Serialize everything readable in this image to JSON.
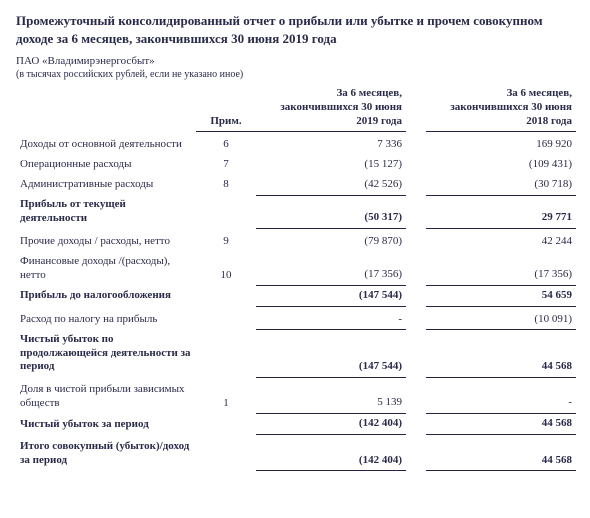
{
  "title": "Промежуточный консолидированный отчет о прибыли или убытке и прочем совокупном доходе за 6 месяцев, закончившихся 30 июня 2019 года",
  "company": "ПАО «Владимирэнергосбыт»",
  "units": "(в тысячах российских рублей, если не указано иное)",
  "headers": {
    "note": "Прим.",
    "current": "За 6 месяцев, закончившихся 30 июня 2019 года",
    "previous": "За 6 месяцев, закончившихся 30 июня 2018 года"
  },
  "rows": {
    "revenue": {
      "label": "Доходы от основной деятельности",
      "note": "6",
      "cur": "7 336",
      "prev": "169 920"
    },
    "opex": {
      "label": "Операционные расходы",
      "note": "7",
      "cur": "(15 127)",
      "prev": "(109 431)"
    },
    "admin": {
      "label": "Административные расходы",
      "note": "8",
      "cur": "(42 526)",
      "prev": "(30 718)"
    },
    "op_profit": {
      "label": "Прибыль от текущей деятельности",
      "note": "",
      "cur": "(50 317)",
      "prev": "29 771"
    },
    "other": {
      "label": "Прочие доходы / расходы, нетто",
      "note": "9",
      "cur": "(79 870)",
      "prev": "42 244"
    },
    "finance": {
      "label": "Финансовые доходы /(расходы), нетто",
      "note": "10",
      "cur": "(17 356)",
      "prev": "(17 356)"
    },
    "pretax": {
      "label": "Прибыль до налогообложения",
      "note": "",
      "cur": "(147 544)",
      "prev": "54 659"
    },
    "tax": {
      "label": "Расход по налогу на прибыль",
      "note": "",
      "cur": "-",
      "prev": "(10 091)"
    },
    "cont_loss": {
      "label": "Чистый убыток по продолжающейся деятельности за период",
      "note": "",
      "cur": "(147 544)",
      "prev": "44 568"
    },
    "assoc": {
      "label": "Доля в чистой прибыли зависимых обществ",
      "note": "1",
      "cur": "5 139",
      "prev": "-"
    },
    "net_loss": {
      "label": "Чистый убыток за период",
      "note": "",
      "cur": "(142 404)",
      "prev": "44 568"
    },
    "total_comp": {
      "label": "Итого совокупный (убыток)/доход за период",
      "note": "",
      "cur": "(142 404)",
      "prev": "44 568"
    }
  }
}
